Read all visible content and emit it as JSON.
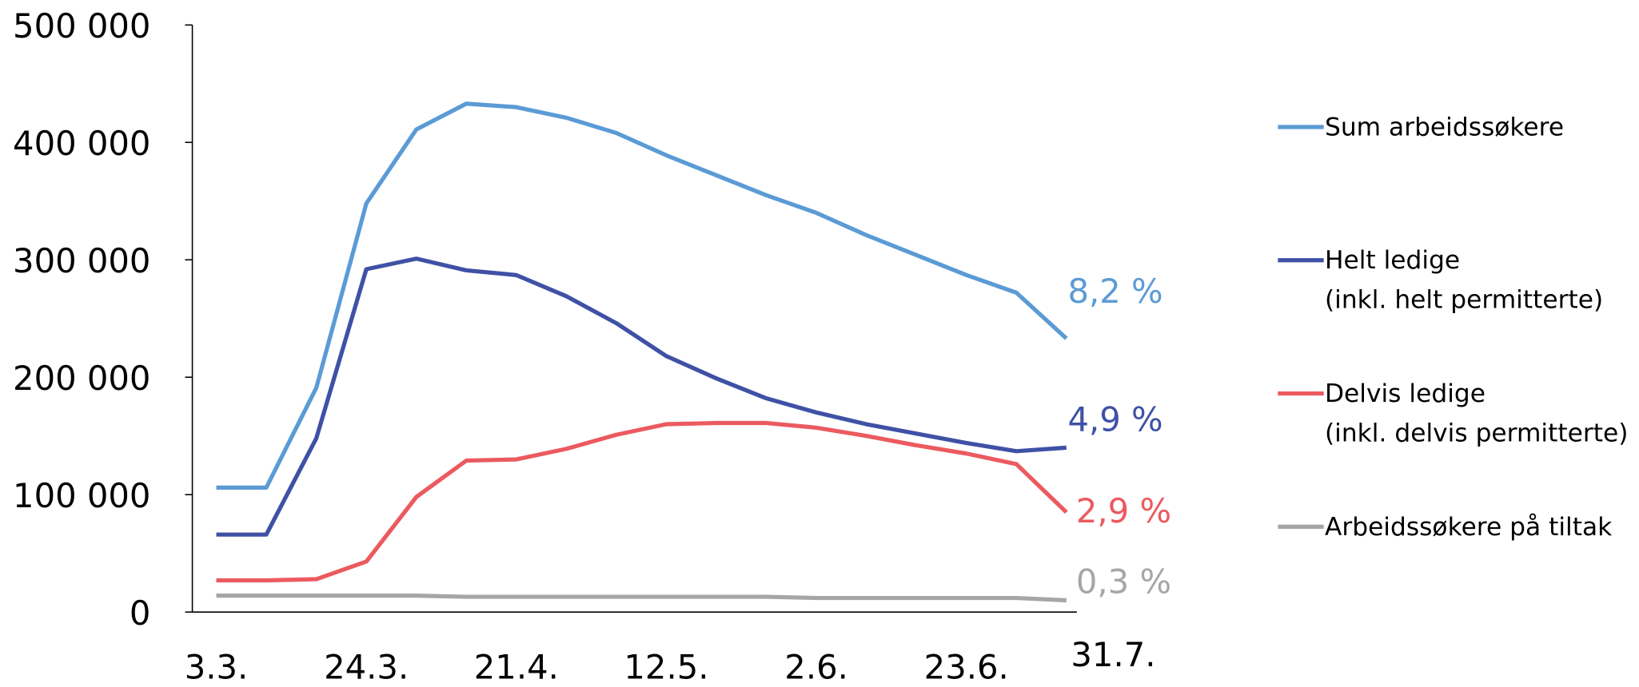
{
  "chart_data": {
    "type": "line",
    "categories": [
      "3.3.",
      null,
      null,
      "24.3.",
      null,
      null,
      "21.4.",
      null,
      null,
      "12.5.",
      null,
      null,
      "2.6.",
      null,
      null,
      "23.6.",
      null,
      "31.7."
    ],
    "ylim": [
      0,
      500000
    ],
    "yticks": [
      0,
      {
        "value": 100000,
        "label": "100 000"
      },
      {
        "value": 200000,
        "label": "200 000"
      },
      {
        "value": 300000,
        "label": "300 000"
      },
      {
        "value": 400000,
        "label": "400 000"
      },
      {
        "value": 500000,
        "label": "500 000"
      }
    ],
    "grid": false,
    "legend": "right",
    "series": [
      {
        "name": "Sum arbeidssøkere",
        "color": "#5b9bd5",
        "end_label": "8,2 %",
        "values": [
          106000,
          106000,
          191000,
          348000,
          411000,
          433000,
          430000,
          421000,
          408000,
          389000,
          372000,
          355000,
          340000,
          321000,
          304000,
          287000,
          272000,
          233000
        ]
      },
      {
        "name": "Helt ledige\n(inkl. helt permitterte)",
        "color": "#3f51a5",
        "end_label": "4,9 %",
        "values": [
          66000,
          66000,
          148000,
          292000,
          301000,
          291000,
          287000,
          269000,
          246000,
          218000,
          199000,
          182000,
          170000,
          160000,
          152000,
          144000,
          137000,
          140000
        ]
      },
      {
        "name": "Delvis ledige\n(inkl. delvis permitterte)",
        "color": "#eb5a5f",
        "end_label": "2,9 %",
        "values": [
          27000,
          27000,
          28000,
          43000,
          98000,
          129000,
          130000,
          139000,
          151000,
          160000,
          161000,
          161000,
          157000,
          150000,
          142000,
          135000,
          126000,
          85000
        ]
      },
      {
        "name": "Arbeidssøkere på tiltak",
        "color": "#a6a6a6",
        "end_label": "0,3 %",
        "values": [
          14000,
          14000,
          14000,
          14000,
          14000,
          13000,
          13000,
          13000,
          13000,
          13000,
          13000,
          13000,
          12000,
          12000,
          12000,
          12000,
          12000,
          10000
        ]
      }
    ]
  }
}
